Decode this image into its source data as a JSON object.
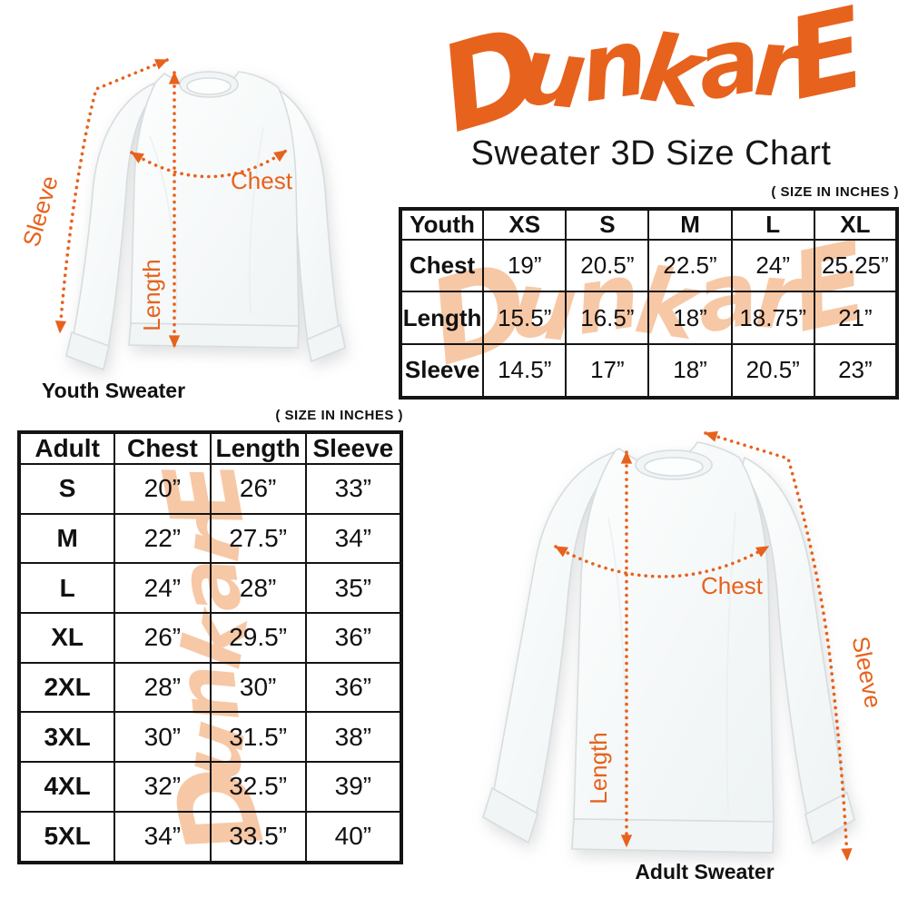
{
  "colors": {
    "accent_orange": "#E7621D",
    "watermark_peach": "#F7C8A6",
    "text": "#111111",
    "table_border": "#141414",
    "sweater_outline": "#D7DDDF"
  },
  "brand": {
    "logo_text": "DunkarE",
    "subtitle": "Sweater 3D Size Chart"
  },
  "notes": {
    "units": "( SIZE IN INCHES )"
  },
  "youth_diagram": {
    "caption": "Youth Sweater",
    "labels": {
      "chest": "Chest",
      "length": "Length",
      "sleeve": "Sleeve"
    }
  },
  "adult_diagram": {
    "caption": "Adult Sweater",
    "labels": {
      "chest": "Chest",
      "length": "Length",
      "sleeve": "Sleeve"
    }
  },
  "chart_data": [
    {
      "type": "table",
      "name": "youth_size_chart",
      "units": "inches",
      "header": [
        "Youth",
        "XS",
        "S",
        "M",
        "L",
        "XL"
      ],
      "rows": [
        [
          "Chest",
          "19”",
          "20.5”",
          "22.5”",
          "24”",
          "25.25”"
        ],
        [
          "Length",
          "15.5”",
          "16.5”",
          "18”",
          "18.75”",
          "21”"
        ],
        [
          "Sleeve",
          "14.5”",
          "17”",
          "18”",
          "20.5”",
          "23”"
        ]
      ]
    },
    {
      "type": "table",
      "name": "adult_size_chart",
      "units": "inches",
      "header": [
        "Adult",
        "Chest",
        "Length",
        "Sleeve"
      ],
      "rows": [
        [
          "S",
          "20”",
          "26”",
          "33”"
        ],
        [
          "M",
          "22”",
          "27.5”",
          "34”"
        ],
        [
          "L",
          "24”",
          "28”",
          "35”"
        ],
        [
          "XL",
          "26”",
          "29.5”",
          "36”"
        ],
        [
          "2XL",
          "28”",
          "30”",
          "36”"
        ],
        [
          "3XL",
          "30”",
          "31.5”",
          "38”"
        ],
        [
          "4XL",
          "32”",
          "32.5”",
          "39”"
        ],
        [
          "5XL",
          "34”",
          "33.5”",
          "40”"
        ]
      ]
    }
  ]
}
